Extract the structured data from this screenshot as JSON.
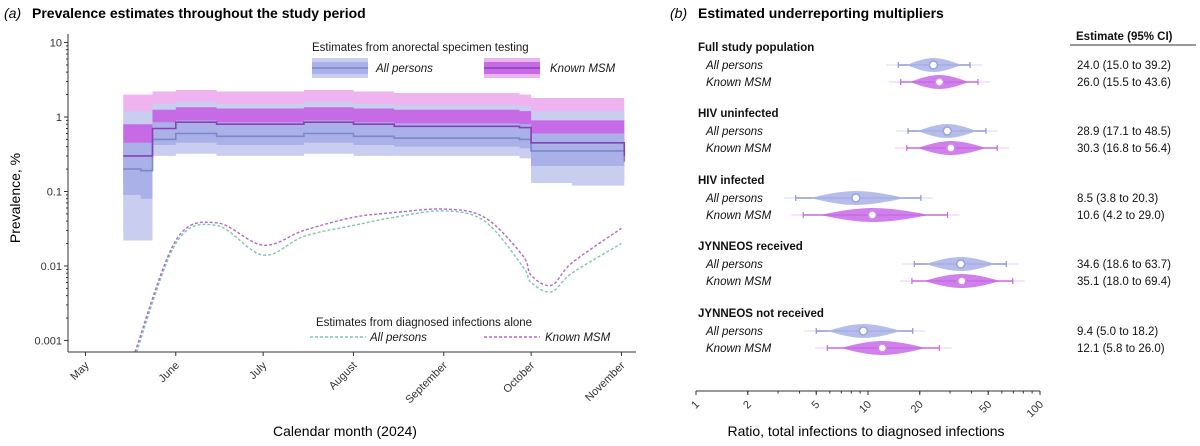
{
  "colors": {
    "all_band_outer": "#c9cdef",
    "all_band_inner": "#aab1e8",
    "all_line": "#7d86c9",
    "msm_band_outer": "#efb3ef",
    "msm_band_inner": "#c76ae6",
    "msm_line": "#8a3fb3",
    "diag_all": "#7fc7b0",
    "diag_msm": "#b06ac9",
    "axis": "#333333"
  },
  "chart_data": [
    {
      "type": "area",
      "panel_tag": "(a)",
      "title": "Prevalence estimates throughout the study period",
      "xlabel": "Calendar month (2024)",
      "ylabel": "Prevalence, %",
      "yscale": "log",
      "ylim": [
        0.0007,
        13
      ],
      "yticks": [
        0.001,
        0.01,
        0.1,
        1,
        10
      ],
      "ytick_labels": [
        "0.001",
        "0.01",
        "0.1",
        "1",
        "10"
      ],
      "xlim": [
        "2024-04-25",
        "2024-11-06"
      ],
      "xticks": [
        "2024-05-01",
        "2024-06-01",
        "2024-07-01",
        "2024-08-01",
        "2024-09-01",
        "2024-10-01",
        "2024-11-01"
      ],
      "xtick_labels": [
        "May",
        "June",
        "July",
        "August",
        "September",
        "October",
        "November"
      ],
      "legend_top": {
        "title": "Estimates from anorectal specimen testing",
        "entries": [
          "All persons",
          "Known MSM"
        ]
      },
      "legend_bottom": {
        "title": "Estimates from diagnosed infections alone",
        "entries": [
          "All persons",
          "Known MSM"
        ]
      },
      "series": [
        {
          "name": "All persons",
          "kind": "anorectal",
          "x": [
            "2024-05-14",
            "2024-05-20",
            "2024-05-24",
            "2024-06-01",
            "2024-06-15",
            "2024-07-01",
            "2024-07-15",
            "2024-08-01",
            "2024-08-15",
            "2024-09-01",
            "2024-09-15",
            "2024-09-27",
            "2024-10-01",
            "2024-10-15",
            "2024-11-01",
            "2024-11-02"
          ],
          "mid": [
            0.2,
            0.19,
            0.5,
            0.6,
            0.55,
            0.55,
            0.6,
            0.55,
            0.52,
            0.52,
            0.52,
            0.5,
            0.35,
            0.35,
            0.35,
            0.25
          ],
          "low95": [
            0.022,
            0.022,
            0.3,
            0.32,
            0.3,
            0.3,
            0.32,
            0.3,
            0.3,
            0.3,
            0.3,
            0.28,
            0.13,
            0.12,
            0.12,
            0.1
          ],
          "low50": [
            0.09,
            0.08,
            0.42,
            0.45,
            0.42,
            0.42,
            0.45,
            0.42,
            0.4,
            0.4,
            0.4,
            0.38,
            0.22,
            0.22,
            0.22,
            0.15
          ],
          "high50": [
            0.45,
            0.45,
            0.85,
            0.9,
            0.85,
            0.85,
            0.9,
            0.85,
            0.82,
            0.82,
            0.82,
            0.8,
            0.6,
            0.6,
            0.6,
            0.5
          ],
          "high95": [
            1.2,
            1.2,
            1.5,
            1.6,
            1.5,
            1.5,
            1.6,
            1.5,
            1.45,
            1.45,
            1.45,
            1.4,
            1.2,
            1.2,
            1.2,
            1.0
          ]
        },
        {
          "name": "Known MSM",
          "kind": "anorectal",
          "x": [
            "2024-05-14",
            "2024-05-20",
            "2024-05-24",
            "2024-06-01",
            "2024-06-15",
            "2024-07-01",
            "2024-07-15",
            "2024-08-01",
            "2024-08-15",
            "2024-09-01",
            "2024-09-15",
            "2024-09-27",
            "2024-10-01",
            "2024-10-15",
            "2024-11-01",
            "2024-11-02"
          ],
          "mid": [
            0.3,
            0.3,
            0.7,
            0.85,
            0.8,
            0.8,
            0.85,
            0.8,
            0.75,
            0.75,
            0.75,
            0.72,
            0.45,
            0.45,
            0.45,
            0.3
          ],
          "low95": [
            0.03,
            0.03,
            0.38,
            0.42,
            0.4,
            0.4,
            0.42,
            0.4,
            0.38,
            0.38,
            0.38,
            0.36,
            0.15,
            0.14,
            0.14,
            0.1
          ],
          "low50": [
            0.13,
            0.12,
            0.55,
            0.6,
            0.57,
            0.57,
            0.6,
            0.57,
            0.55,
            0.55,
            0.55,
            0.53,
            0.28,
            0.28,
            0.28,
            0.18
          ],
          "high50": [
            0.8,
            0.8,
            1.25,
            1.35,
            1.3,
            1.3,
            1.35,
            1.3,
            1.25,
            1.25,
            1.25,
            1.2,
            0.9,
            0.9,
            0.9,
            0.7
          ],
          "high95": [
            2.0,
            2.0,
            2.2,
            2.3,
            2.2,
            2.2,
            2.3,
            2.2,
            2.1,
            2.1,
            2.1,
            2.0,
            1.8,
            1.8,
            1.8,
            1.5
          ]
        },
        {
          "name": "All persons",
          "kind": "diagnosed",
          "x": [
            "2024-05-18",
            "2024-06-01",
            "2024-06-15",
            "2024-07-01",
            "2024-07-15",
            "2024-08-01",
            "2024-08-15",
            "2024-09-01",
            "2024-09-15",
            "2024-09-28",
            "2024-10-01",
            "2024-10-08",
            "2024-10-15",
            "2024-11-01"
          ],
          "y": [
            0.0006,
            0.02,
            0.035,
            0.014,
            0.025,
            0.035,
            0.045,
            0.055,
            0.04,
            0.01,
            0.006,
            0.0045,
            0.008,
            0.02
          ]
        },
        {
          "name": "Known MSM",
          "kind": "diagnosed",
          "x": [
            "2024-05-18",
            "2024-06-01",
            "2024-06-15",
            "2024-07-01",
            "2024-07-15",
            "2024-08-01",
            "2024-08-15",
            "2024-09-01",
            "2024-09-15",
            "2024-09-28",
            "2024-10-01",
            "2024-10-08",
            "2024-10-15",
            "2024-11-01"
          ],
          "y": [
            0.0007,
            0.022,
            0.038,
            0.019,
            0.03,
            0.045,
            0.052,
            0.058,
            0.045,
            0.014,
            0.0075,
            0.0055,
            0.011,
            0.032
          ]
        }
      ]
    },
    {
      "type": "scatter",
      "panel_tag": "(b)",
      "title": "Estimated underreporting multipliers",
      "xlabel": "Ratio, total infections to diagnosed infections",
      "xscale": "log",
      "xlim": [
        1,
        100
      ],
      "xticks": [
        1,
        2,
        5,
        10,
        20,
        50,
        100
      ],
      "xtick_labels": [
        "1",
        "2",
        "5",
        "10",
        "20",
        "50",
        "100"
      ],
      "estimate_header": "Estimate (95% CI)",
      "groups": [
        {
          "label": "Full study population",
          "rows": [
            {
              "name": "All persons",
              "estimate": 24.0,
              "low": 15.0,
              "high": 39.2,
              "text": "24.0 (15.0 to 39.2)"
            },
            {
              "name": "Known MSM",
              "estimate": 26.0,
              "low": 15.5,
              "high": 43.6,
              "text": "26.0 (15.5 to 43.6)"
            }
          ]
        },
        {
          "label": "HIV uninfected",
          "rows": [
            {
              "name": "All persons",
              "estimate": 28.9,
              "low": 17.1,
              "high": 48.5,
              "text": "28.9 (17.1 to 48.5)"
            },
            {
              "name": "Known MSM",
              "estimate": 30.3,
              "low": 16.8,
              "high": 56.4,
              "text": "30.3 (16.8 to 56.4)"
            }
          ]
        },
        {
          "label": "HIV infected",
          "rows": [
            {
              "name": "All persons",
              "estimate": 8.5,
              "low": 3.8,
              "high": 20.3,
              "text": "8.5 (3.8 to 20.3)"
            },
            {
              "name": "Known MSM",
              "estimate": 10.6,
              "low": 4.2,
              "high": 29.0,
              "text": "10.6 (4.2 to 29.0)"
            }
          ]
        },
        {
          "label": "JYNNEOS received",
          "rows": [
            {
              "name": "All persons",
              "estimate": 34.6,
              "low": 18.6,
              "high": 63.7,
              "text": "34.6 (18.6 to 63.7)"
            },
            {
              "name": "Known MSM",
              "estimate": 35.1,
              "low": 18.0,
              "high": 69.4,
              "text": "35.1 (18.0 to 69.4)"
            }
          ]
        },
        {
          "label": "JYNNEOS not received",
          "rows": [
            {
              "name": "All persons",
              "estimate": 9.4,
              "low": 5.0,
              "high": 18.2,
              "text": "9.4 (5.0 to 18.2)"
            },
            {
              "name": "Known MSM",
              "estimate": 12.1,
              "low": 5.8,
              "high": 26.0,
              "text": "12.1 (5.8 to 26.0)"
            }
          ]
        }
      ]
    }
  ]
}
